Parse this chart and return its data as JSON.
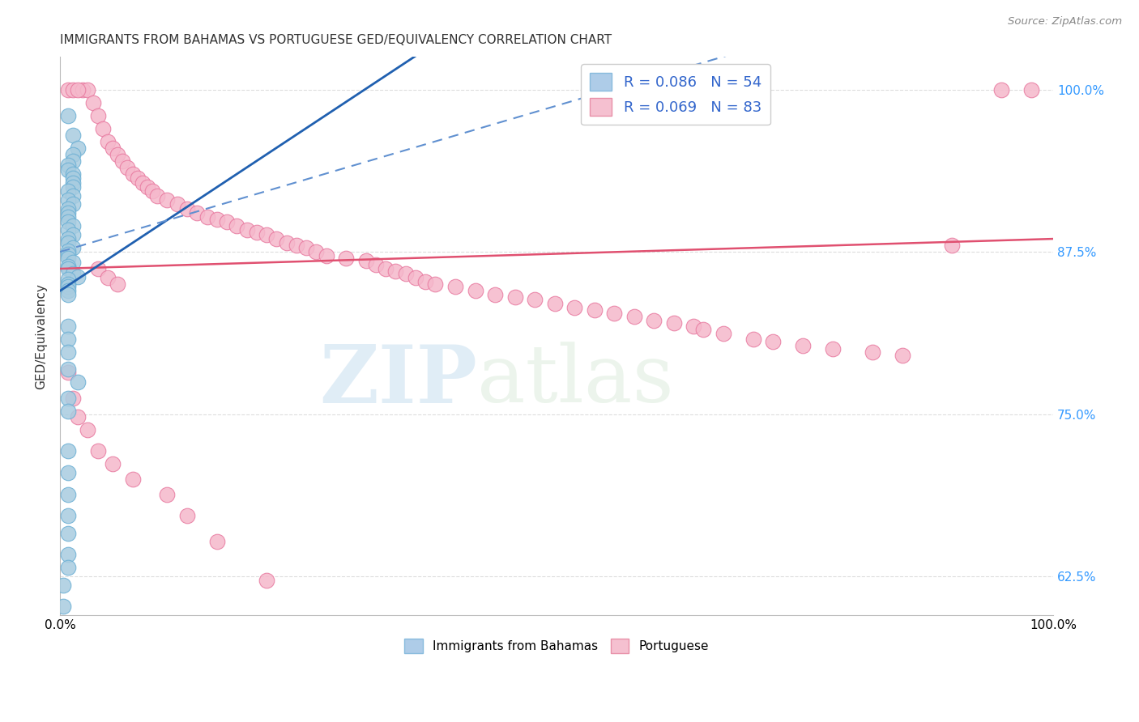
{
  "title": "IMMIGRANTS FROM BAHAMAS VS PORTUGUESE GED/EQUIVALENCY CORRELATION CHART",
  "source": "Source: ZipAtlas.com",
  "ylabel": "GED/Equivalency",
  "ytick_labels": [
    "62.5%",
    "75.0%",
    "87.5%",
    "100.0%"
  ],
  "ytick_values": [
    0.625,
    0.75,
    0.875,
    1.0
  ],
  "watermark_zip": "ZIP",
  "watermark_atlas": "atlas",
  "bahamas_color": "#a8cce0",
  "bahamas_edge": "#6aafd4",
  "portuguese_color": "#f5b8cb",
  "portuguese_edge": "#e87aa0",
  "trend_blue_solid_color": "#2060b0",
  "trend_blue_dash_color": "#6090d0",
  "trend_pink_color": "#e05070",
  "xlim": [
    0.0,
    1.0
  ],
  "ylim": [
    0.595,
    1.025
  ],
  "bahamas_x": [
    0.008,
    0.013,
    0.018,
    0.013,
    0.013,
    0.008,
    0.008,
    0.013,
    0.013,
    0.013,
    0.013,
    0.008,
    0.013,
    0.008,
    0.013,
    0.008,
    0.008,
    0.008,
    0.008,
    0.013,
    0.008,
    0.013,
    0.008,
    0.008,
    0.013,
    0.008,
    0.008,
    0.008,
    0.013,
    0.008,
    0.008,
    0.013,
    0.018,
    0.008,
    0.008,
    0.008,
    0.008,
    0.008,
    0.008,
    0.008,
    0.008,
    0.008,
    0.018,
    0.008,
    0.008,
    0.008,
    0.008,
    0.008,
    0.008,
    0.008,
    0.008,
    0.008,
    0.003,
    0.003
  ],
  "bahamas_y": [
    0.98,
    0.965,
    0.955,
    0.95,
    0.945,
    0.942,
    0.938,
    0.935,
    0.932,
    0.928,
    0.925,
    0.922,
    0.918,
    0.915,
    0.912,
    0.908,
    0.905,
    0.902,
    0.898,
    0.895,
    0.892,
    0.888,
    0.885,
    0.882,
    0.878,
    0.876,
    0.873,
    0.87,
    0.867,
    0.864,
    0.862,
    0.858,
    0.856,
    0.854,
    0.85,
    0.848,
    0.845,
    0.842,
    0.818,
    0.808,
    0.798,
    0.785,
    0.775,
    0.762,
    0.752,
    0.722,
    0.705,
    0.688,
    0.672,
    0.658,
    0.642,
    0.632,
    0.618,
    0.602
  ],
  "portuguese_x": [
    0.008,
    0.013,
    0.023,
    0.028,
    0.018,
    0.033,
    0.038,
    0.043,
    0.048,
    0.053,
    0.058,
    0.063,
    0.068,
    0.073,
    0.078,
    0.083,
    0.088,
    0.093,
    0.098,
    0.108,
    0.118,
    0.128,
    0.138,
    0.148,
    0.158,
    0.168,
    0.178,
    0.188,
    0.198,
    0.208,
    0.218,
    0.228,
    0.238,
    0.248,
    0.258,
    0.268,
    0.288,
    0.308,
    0.318,
    0.328,
    0.338,
    0.348,
    0.358,
    0.368,
    0.378,
    0.398,
    0.418,
    0.438,
    0.458,
    0.478,
    0.498,
    0.518,
    0.538,
    0.558,
    0.578,
    0.598,
    0.618,
    0.638,
    0.648,
    0.668,
    0.698,
    0.718,
    0.748,
    0.778,
    0.818,
    0.848,
    0.898,
    0.948,
    0.978,
    0.008,
    0.013,
    0.018,
    0.028,
    0.038,
    0.053,
    0.073,
    0.108,
    0.128,
    0.158,
    0.208,
    0.038,
    0.048,
    0.058
  ],
  "portuguese_y": [
    1.0,
    1.0,
    1.0,
    1.0,
    1.0,
    0.99,
    0.98,
    0.97,
    0.96,
    0.955,
    0.95,
    0.945,
    0.94,
    0.935,
    0.932,
    0.928,
    0.925,
    0.922,
    0.918,
    0.915,
    0.912,
    0.908,
    0.905,
    0.902,
    0.9,
    0.898,
    0.895,
    0.892,
    0.89,
    0.888,
    0.885,
    0.882,
    0.88,
    0.878,
    0.875,
    0.872,
    0.87,
    0.868,
    0.865,
    0.862,
    0.86,
    0.858,
    0.855,
    0.852,
    0.85,
    0.848,
    0.845,
    0.842,
    0.84,
    0.838,
    0.835,
    0.832,
    0.83,
    0.828,
    0.825,
    0.822,
    0.82,
    0.818,
    0.815,
    0.812,
    0.808,
    0.806,
    0.803,
    0.8,
    0.798,
    0.795,
    0.88,
    1.0,
    1.0,
    0.782,
    0.762,
    0.748,
    0.738,
    0.722,
    0.712,
    0.7,
    0.688,
    0.672,
    0.652,
    0.622,
    0.862,
    0.855,
    0.85
  ]
}
